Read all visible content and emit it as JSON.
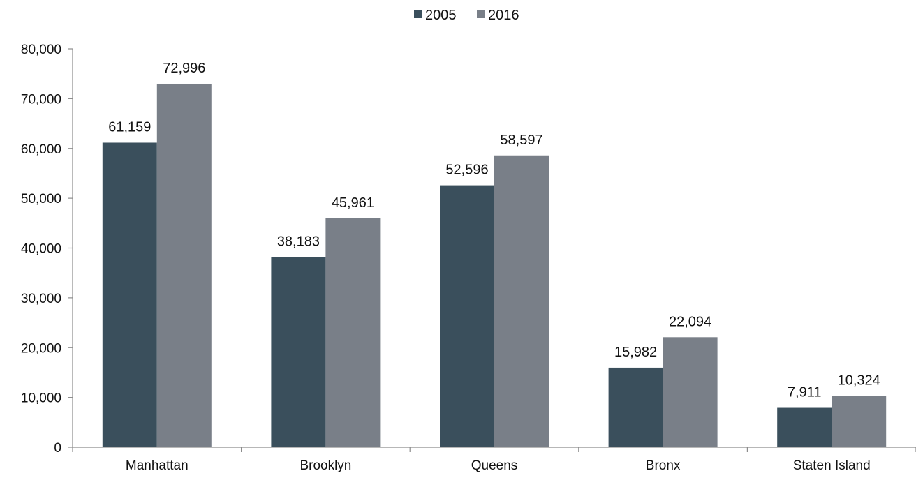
{
  "chart_data": {
    "type": "bar",
    "categories": [
      "Manhattan",
      "Brooklyn",
      "Queens",
      "Bronx",
      "Staten Island"
    ],
    "series": [
      {
        "name": "2005",
        "color": "#3a4f5c",
        "values": [
          61159,
          38183,
          52596,
          15982,
          7911
        ],
        "labels": [
          "61,159",
          "38,183",
          "52,596",
          "15,982",
          "7,911"
        ]
      },
      {
        "name": "2016",
        "color": "#797f88",
        "values": [
          72996,
          45961,
          58597,
          22094,
          10324
        ],
        "labels": [
          "72,996",
          "45,961",
          "58,597",
          "22,094",
          "10,324"
        ]
      }
    ],
    "ylim": [
      0,
      80000
    ],
    "yticks": [
      0,
      10000,
      20000,
      30000,
      40000,
      50000,
      60000,
      70000,
      80000
    ],
    "ytick_labels": [
      "0",
      "10,000",
      "20,000",
      "30,000",
      "40,000",
      "50,000",
      "60,000",
      "70,000",
      "80,000"
    ],
    "grid": false,
    "legend_position": "top-center",
    "axis_color": "#8c8c8c"
  }
}
